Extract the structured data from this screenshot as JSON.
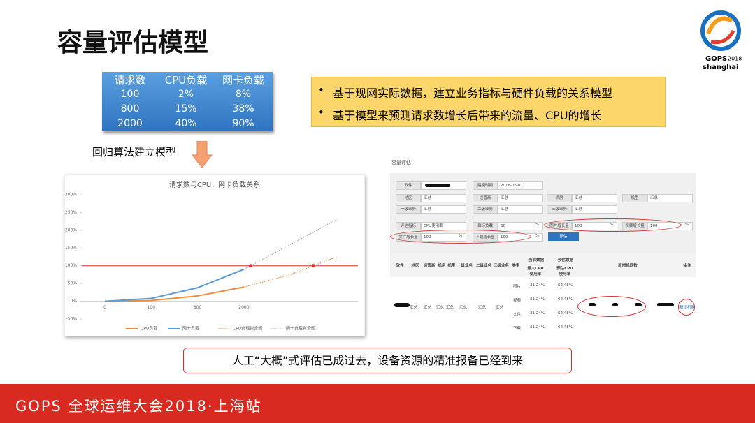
{
  "title": "容量评估模型",
  "logo": {
    "brand": "GOPS",
    "year": "2018",
    "city": "shanghai"
  },
  "table": {
    "header": [
      "请求数",
      "CPU负载",
      "网卡负载"
    ],
    "rows": [
      [
        "100",
        "2%",
        "8%"
      ],
      [
        "800",
        "15%",
        "38%"
      ],
      [
        "2000",
        "40%",
        "90%"
      ]
    ]
  },
  "bullets": [
    "基于现网实际数据，建立业务指标与硬件负载的关系模型",
    "基于模型来预测请求数增长后带来的流量、CPU的增长"
  ],
  "arrow_label": "回归算法建立模型",
  "chart_data": {
    "type": "line",
    "title": "请求数与CPU、网卡负载关系",
    "categories": [
      "0",
      "100",
      "800",
      "2000",
      null,
      null
    ],
    "series": [
      {
        "name": "CPU负载",
        "color": "#f08a3c",
        "style": "solid",
        "values": [
          0,
          2,
          15,
          40,
          null,
          null
        ]
      },
      {
        "name": "网卡负载",
        "color": "#5b9bd5",
        "style": "solid",
        "values": [
          0,
          8,
          38,
          90,
          null,
          null
        ]
      },
      {
        "name": "CPU负载拟合图",
        "color": "#f08a3c",
        "style": "dotted",
        "values": [
          null,
          null,
          null,
          40,
          75,
          125
        ]
      },
      {
        "name": "网卡负载拟合图",
        "color": "#a6a6a6",
        "style": "dotted",
        "values": [
          null,
          null,
          null,
          90,
          160,
          230
        ]
      }
    ],
    "threshold": 100,
    "threshold_color": "#e03030",
    "ylim": [
      -50,
      300
    ],
    "yticks": [
      {
        "value": -50,
        "label": "-50%"
      },
      {
        "value": 0,
        "label": "0%"
      },
      {
        "value": 50,
        "label": "50%"
      },
      {
        "value": 100,
        "label": "100%"
      },
      {
        "value": 150,
        "label": "150%"
      },
      {
        "value": 200,
        "label": "200%"
      },
      {
        "value": 250,
        "label": "250%"
      },
      {
        "value": 300,
        "label": "300%"
      }
    ],
    "grid": false
  },
  "tool": {
    "title": "容量评估",
    "form": [
      [
        {
          "label": "软件",
          "value": ""
        },
        {
          "label": "建模时间",
          "value": "2018-06-01"
        }
      ],
      [
        {
          "label": "地区",
          "value": "汇总"
        },
        {
          "label": "运营商",
          "value": "汇总"
        },
        {
          "label": "机房",
          "value": "汇总"
        },
        {
          "label": "机型",
          "value": "汇总"
        }
      ],
      [
        {
          "label": "一级业务",
          "value": "汇总"
        },
        {
          "label": "二级业务",
          "value": "汇总"
        },
        {
          "label": "三级业务",
          "value": "汇总"
        }
      ],
      [
        {
          "label": "评估指标",
          "value": "CPU使用率"
        },
        {
          "label": "目标负载",
          "value": "30",
          "unit": "%"
        },
        {
          "label": "图片增长量",
          "value": "100",
          "unit": "%"
        },
        {
          "label": "视频增长量",
          "value": "100",
          "unit": "%"
        }
      ],
      [
        {
          "label": "文件增长量",
          "value": "100",
          "unit": "%"
        },
        {
          "label": "下载增长量",
          "value": "100",
          "unit": "%"
        }
      ]
    ],
    "button": "预估",
    "columns": [
      "软件",
      "地区",
      "运营商",
      "机房",
      "机型",
      "一级业务",
      "二级业务",
      "三级业务",
      "类型",
      "最大CPU使用率",
      "预估CPU使用率",
      "新增机器数",
      "操作"
    ],
    "group_headers": [
      "当前数据",
      "预估数据"
    ],
    "summary": [
      "汇总",
      "汇总",
      "汇总",
      "汇总",
      "汇总",
      "汇总",
      "汇总"
    ],
    "rows": [
      [
        "图片",
        "31.24%",
        "62.48%"
      ],
      [
        "视频",
        "31.24%",
        "62.48%"
      ],
      [
        "文件",
        "31.24%",
        "62.48%"
      ],
      [
        "下载",
        "31.24%",
        "62.48%"
      ]
    ],
    "action": "新增机器"
  },
  "callout": "人工“大概”式评估已成过去，设备资源的精准报备已经到来",
  "footer": "GOPS 全球运维大会2018·上海站"
}
